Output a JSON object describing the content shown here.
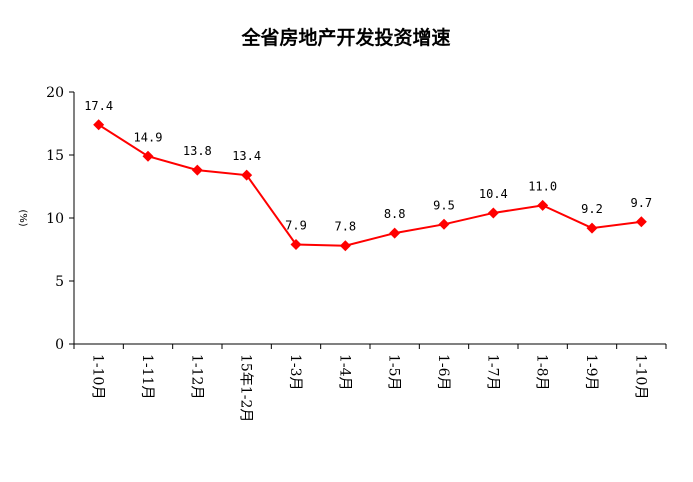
{
  "chart_data": {
    "type": "line",
    "title": "全省房地产开发投资增速",
    "ylabel": "(%)",
    "xlabel": "",
    "ylim": [
      0,
      20
    ],
    "yticks": [
      0,
      5,
      10,
      15,
      20
    ],
    "grid": false,
    "legend": "none",
    "categories": [
      "1-10月",
      "1-11月",
      "1-12月",
      "15年1-2月",
      "1-3月",
      "1-4月",
      "1-5月",
      "1-6月",
      "1-7月",
      "1-8月",
      "1-9月",
      "1-10月"
    ],
    "series": [
      {
        "values": [
          17.4,
          14.9,
          13.8,
          13.4,
          7.9,
          7.8,
          8.8,
          9.5,
          10.4,
          11.0,
          9.2,
          9.7
        ],
        "labels": [
          "17.4",
          "14.9",
          "13.8",
          "13.4",
          "7.9",
          "7.8",
          "8.8",
          "9.5",
          "10.4",
          "11.0",
          "9.2",
          "9.7"
        ],
        "color": "#ff0000",
        "marker": "diamond"
      }
    ]
  }
}
